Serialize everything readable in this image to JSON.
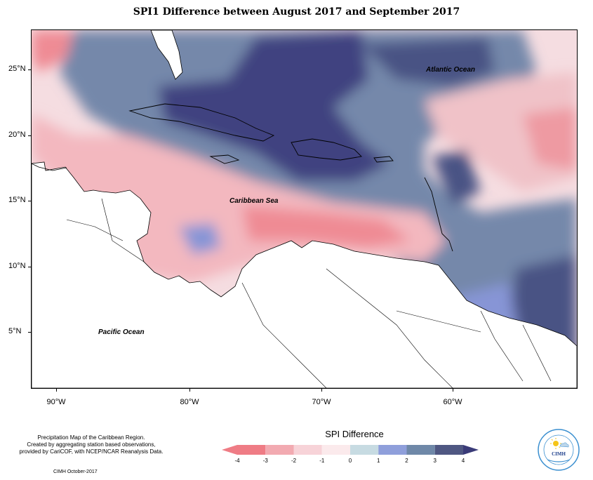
{
  "title": "SPI1 Difference between August 2017 and September 2017",
  "map": {
    "lat_labels": [
      "25°N",
      "20°N",
      "15°N",
      "10°N",
      "5°N"
    ],
    "lon_labels": [
      "90°W",
      "80°W",
      "70°W",
      "60°W"
    ],
    "ocean_labels": {
      "atlantic": "Atlantic Ocean",
      "caribbean": "Caribbean Sea",
      "pacific": "Pacific Ocean"
    }
  },
  "legend": {
    "title": "SPI Difference",
    "ticks": [
      "-4",
      "-3",
      "-2",
      "-1",
      "0",
      "1",
      "2",
      "3",
      "4"
    ],
    "colors": [
      "#ef7c85",
      "#f2aab1",
      "#f7d3d8",
      "#fbeaec",
      "#c7dbe2",
      "#8f9fdb",
      "#6f88a8",
      "#4f5782",
      "#3a3b78"
    ]
  },
  "footer": {
    "note_line1": "Precipitation Map of the Caribbean Region.",
    "note_line2": "Created by aggregating station based observations,",
    "note_line3": "provided by CariCOF, with NCEP/NCAR Reanalysis Data.",
    "credit": "CIMH October-2017"
  },
  "logo": {
    "text": "CIMH",
    "icon": "sun-cloud-icon"
  }
}
